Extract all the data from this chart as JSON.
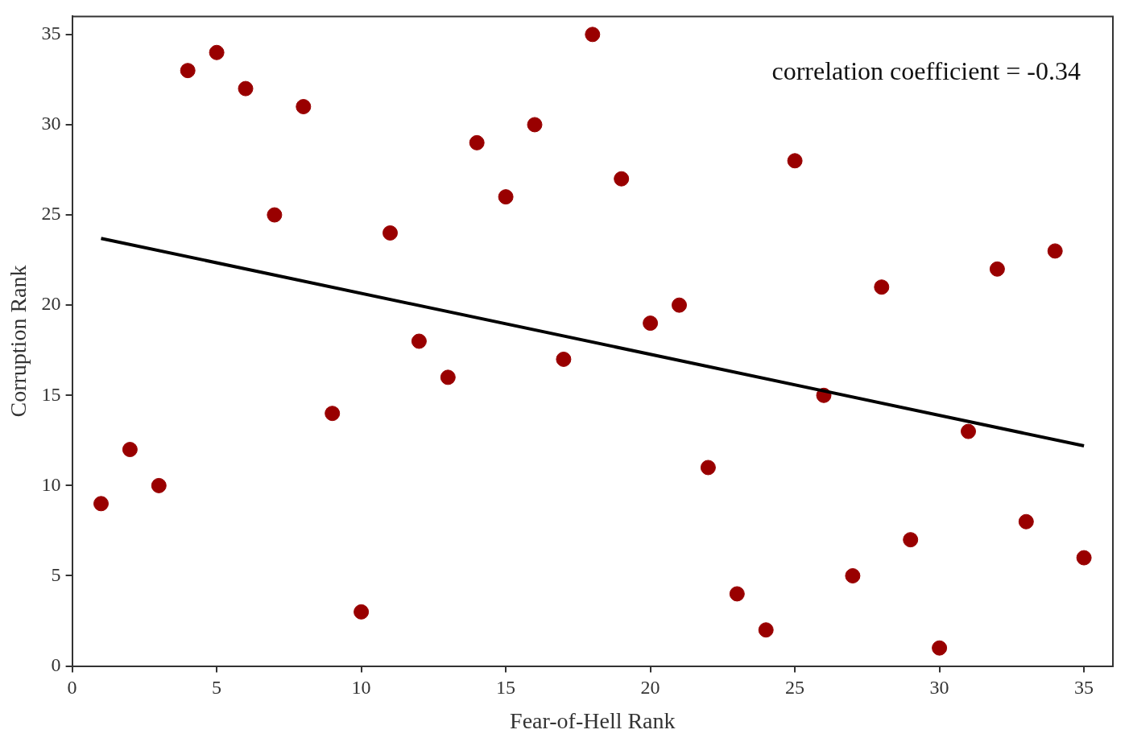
{
  "chart_data": {
    "type": "scatter",
    "xlabel": "Fear-of-Hell Rank",
    "ylabel": "Corruption Rank",
    "xlim": [
      0,
      36
    ],
    "ylim": [
      0,
      36
    ],
    "xticks": [
      0,
      5,
      10,
      15,
      20,
      25,
      30,
      35
    ],
    "yticks": [
      0,
      5,
      10,
      15,
      20,
      25,
      30,
      35
    ],
    "grid": false,
    "marker": "circle",
    "annotations": [
      "correlation coefficient = -0.34"
    ],
    "series": [
      {
        "color": "#990000",
        "x": [
          1,
          2,
          3,
          4,
          5,
          6,
          7,
          8,
          9,
          10,
          11,
          12,
          13,
          14,
          15,
          16,
          17,
          18,
          19,
          20,
          21,
          22,
          23,
          24,
          25,
          26,
          27,
          28,
          29,
          30,
          31,
          32,
          33,
          34,
          35
        ],
        "values": [
          9,
          12,
          10,
          33,
          34,
          32,
          25,
          31,
          14,
          3,
          24,
          18,
          16,
          29,
          26,
          30,
          17,
          35,
          27,
          19,
          20,
          11,
          4,
          2,
          28,
          15,
          5,
          21,
          7,
          1,
          13,
          22,
          8,
          23,
          6
        ]
      },
      {
        "type": "line",
        "color": "#000000",
        "marker": "none",
        "x": [
          1,
          35
        ],
        "values": [
          23.7,
          12.2
        ]
      }
    ]
  }
}
